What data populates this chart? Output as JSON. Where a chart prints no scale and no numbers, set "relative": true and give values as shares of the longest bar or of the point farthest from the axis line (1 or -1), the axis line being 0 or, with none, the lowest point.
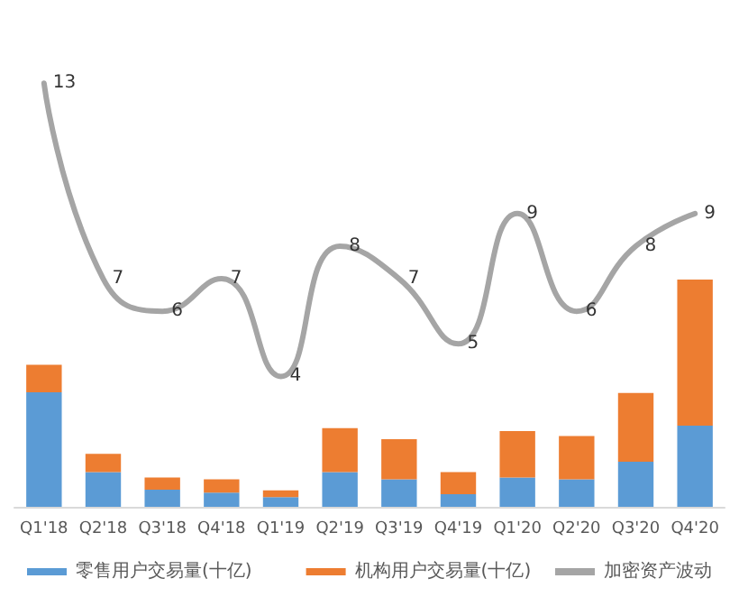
{
  "chart_data": [
    {
      "type": "line",
      "categories": [
        null,
        null,
        null,
        null,
        null,
        null,
        null,
        null,
        null,
        null,
        null,
        null
      ],
      "legend": "bottom right",
      "tick_labels": false,
      "data_labels": true,
      "series": [
        {
          "name": "加密资产波动",
          "color": "#a5a5a5",
          "values": [
            13,
            7,
            6,
            7,
            4,
            8,
            7,
            5,
            9,
            6,
            8,
            9
          ]
        }
      ]
    },
    {
      "type": "bar",
      "categories": [
        "Q1'18",
        "Q2'18",
        "Q3'18",
        "Q4'18",
        "Q1'19",
        "Q2'19",
        "Q3'19",
        "Q4'19",
        "Q1'20",
        "Q2'20",
        "Q3'20",
        "Q4'20"
      ],
      "relative": true,
      "stacked": true,
      "legend": "bottom left",
      "tick_labels": "x",
      "series": [
        {
          "name": "零售用户交易量(十亿)",
          "color": "#5b9bd5",
          "values": [
            0.504,
            0.153,
            0.075,
            0.062,
            0.043,
            0.153,
            0.121,
            0.056,
            0.129,
            0.121,
            0.198,
            0.357
          ]
        },
        {
          "name": "机构用户交易量(十亿)",
          "color": "#ed7d31",
          "values": [
            0.121,
            0.08,
            0.054,
            0.059,
            0.029,
            0.193,
            0.177,
            0.097,
            0.204,
            0.19,
            0.303,
            0.643
          ]
        }
      ]
    }
  ]
}
